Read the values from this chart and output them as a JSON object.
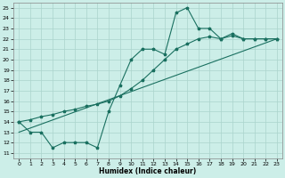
{
  "xlabel": "Humidex (Indice chaleur)",
  "xlim": [
    -0.5,
    23.5
  ],
  "ylim": [
    10.5,
    25.5
  ],
  "yticks": [
    11,
    12,
    13,
    14,
    15,
    16,
    17,
    18,
    19,
    20,
    21,
    22,
    23,
    24,
    25
  ],
  "xticks": [
    0,
    1,
    2,
    3,
    4,
    5,
    6,
    7,
    8,
    9,
    10,
    11,
    12,
    13,
    14,
    15,
    16,
    17,
    18,
    19,
    20,
    21,
    22,
    23
  ],
  "bg_color": "#cceee8",
  "grid_color": "#aad4cc",
  "line_color": "#1a7060",
  "line1_x": [
    0,
    1,
    2,
    3,
    4,
    5,
    6,
    7,
    8,
    9,
    10,
    11,
    12,
    13,
    14,
    15,
    16,
    17,
    18,
    19,
    20,
    21,
    22,
    23
  ],
  "line1_y": [
    14,
    13,
    13,
    11.5,
    12,
    12,
    12,
    11.5,
    15,
    17.5,
    20,
    21,
    21,
    20.5,
    24.5,
    25,
    23,
    23,
    22,
    22.5,
    22,
    22,
    22,
    22
  ],
  "line2_x": [
    0,
    1,
    2,
    3,
    4,
    5,
    6,
    7,
    8,
    9,
    10,
    11,
    12,
    13,
    14,
    15,
    16,
    17,
    18,
    19,
    20,
    21,
    22,
    23
  ],
  "line2_y": [
    14,
    14.2,
    14.5,
    14.7,
    15.0,
    15.2,
    15.5,
    15.7,
    16.0,
    16.5,
    17.2,
    18.0,
    19.0,
    20.0,
    21.0,
    21.5,
    22.0,
    22.2,
    22.0,
    22.3,
    22.0,
    22.0,
    22.0,
    22.0
  ],
  "line3_x": [
    0,
    23
  ],
  "line3_y": [
    13.0,
    22.0
  ]
}
